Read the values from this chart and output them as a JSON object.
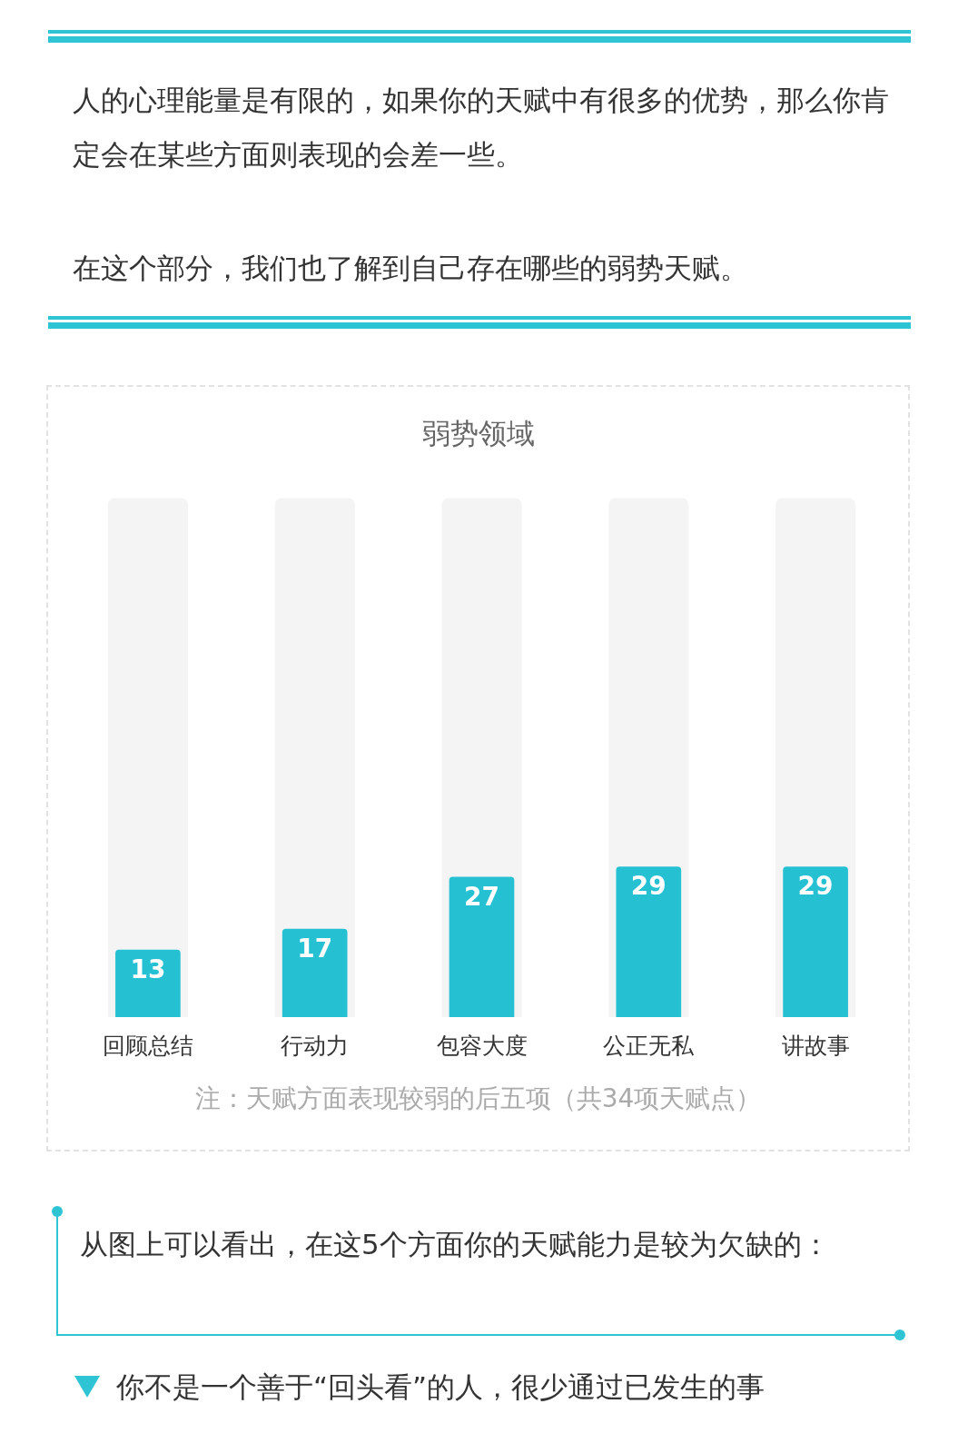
{
  "chart_data": {
    "type": "bar",
    "title": "弱势领域",
    "categories": [
      "回顾总结",
      "行动力",
      "包容大度",
      "公正无私",
      "讲故事"
    ],
    "series": [
      {
        "color": "#f4f4f4",
        "values": [
          100,
          100,
          100,
          100,
          100
        ]
      },
      {
        "color": "#26c0d3",
        "values": [
          13,
          17,
          27,
          29,
          29
        ],
        "value_labels": [
          "13",
          "17",
          "27",
          "29",
          "29"
        ]
      }
    ],
    "ylim": [
      0,
      100
    ],
    "tick_labels": "x",
    "grid": false,
    "legend": false,
    "annotations": [
      "人的心理能量是有限的，如果你的天赋中有很多的优势，那么你肯定会在某些方面则表现的会差一些。",
      "在这个部分，我们也了解到自己存在哪些的弱势天赋。",
      "注：天赋方面表现较弱的后五项（共34项天赋点）",
      "从图上可以看出，在这5个方面你的天赋能力是较为欠缺的：",
      "你不是一个善于“回头看”的人，很少通过已发生的事"
    ]
  }
}
